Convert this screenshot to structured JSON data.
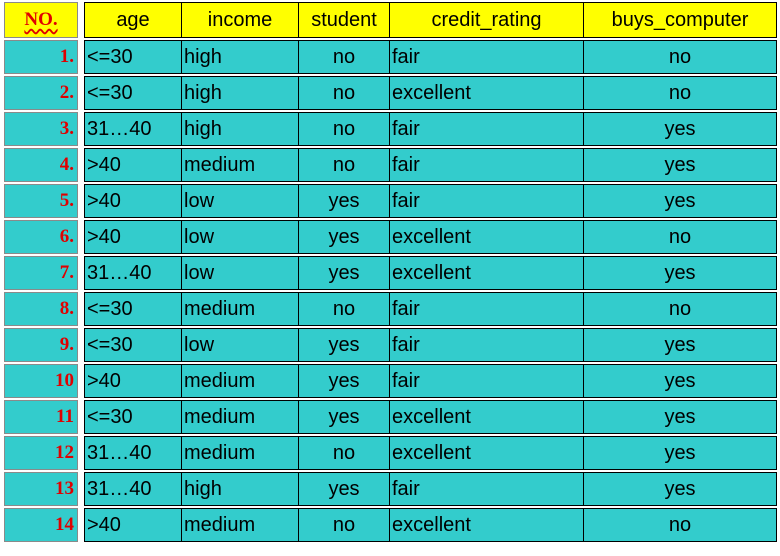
{
  "table": {
    "no_header": "NO.",
    "columns": [
      "age",
      "income",
      "student",
      "credit_rating",
      "buys_computer"
    ],
    "rows": [
      {
        "no": "1.",
        "age": "<=30",
        "income": "high",
        "student": "no",
        "credit_rating": "fair",
        "buys_computer": "no"
      },
      {
        "no": "2.",
        "age": "<=30",
        "income": "high",
        "student": "no",
        "credit_rating": "excellent",
        "buys_computer": "no"
      },
      {
        "no": "3.",
        "age": "31…40",
        "income": "high",
        "student": "no",
        "credit_rating": "fair",
        "buys_computer": "yes"
      },
      {
        "no": "4.",
        "age": ">40",
        "income": "medium",
        "student": "no",
        "credit_rating": "fair",
        "buys_computer": "yes"
      },
      {
        "no": "5.",
        "age": ">40",
        "income": "low",
        "student": "yes",
        "credit_rating": "fair",
        "buys_computer": "yes"
      },
      {
        "no": "6.",
        "age": ">40",
        "income": "low",
        "student": "yes",
        "credit_rating": "excellent",
        "buys_computer": "no"
      },
      {
        "no": "7.",
        "age": "31…40",
        "income": "low",
        "student": "yes",
        "credit_rating": "excellent",
        "buys_computer": "yes"
      },
      {
        "no": "8.",
        "age": "<=30",
        "income": "medium",
        "student": "no",
        "credit_rating": "fair",
        "buys_computer": "no"
      },
      {
        "no": "9.",
        "age": "<=30",
        "income": "low",
        "student": "yes",
        "credit_rating": "fair",
        "buys_computer": "yes"
      },
      {
        "no": "10",
        "age": ">40",
        "income": "medium",
        "student": "yes",
        "credit_rating": "fair",
        "buys_computer": "yes"
      },
      {
        "no": "11",
        "age": "<=30",
        "income": "medium",
        "student": "yes",
        "credit_rating": "excellent",
        "buys_computer": "yes"
      },
      {
        "no": "12",
        "age": "31…40",
        "income": "medium",
        "student": "no",
        "credit_rating": "excellent",
        "buys_computer": "yes"
      },
      {
        "no": "13",
        "age": "31…40",
        "income": "high",
        "student": "yes",
        "credit_rating": "fair",
        "buys_computer": "yes"
      },
      {
        "no": "14",
        "age": ">40",
        "income": "medium",
        "student": "no",
        "credit_rating": "excellent",
        "buys_computer": "no"
      }
    ]
  },
  "colors": {
    "header_bg": "#ffff00",
    "cell_bg": "#33cccc",
    "row_number_text": "#e00000",
    "border": "#000000"
  }
}
